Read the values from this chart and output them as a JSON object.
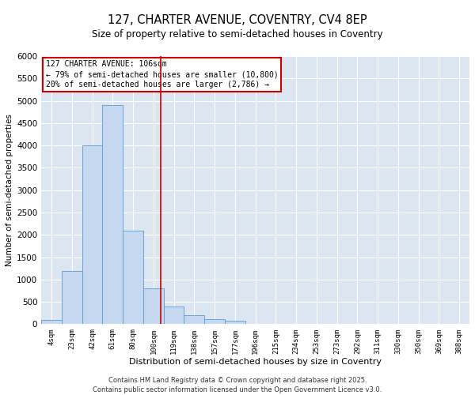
{
  "title1": "127, CHARTER AVENUE, COVENTRY, CV4 8EP",
  "title2": "Size of property relative to semi-detached houses in Coventry",
  "xlabel": "Distribution of semi-detached houses by size in Coventry",
  "ylabel": "Number of semi-detached properties",
  "categories": [
    "4sqm",
    "23sqm",
    "42sqm",
    "61sqm",
    "80sqm",
    "100sqm",
    "119sqm",
    "138sqm",
    "157sqm",
    "177sqm",
    "196sqm",
    "215sqm",
    "234sqm",
    "253sqm",
    "273sqm",
    "292sqm",
    "311sqm",
    "330sqm",
    "350sqm",
    "369sqm",
    "388sqm"
  ],
  "bar_values": [
    100,
    1200,
    4000,
    4900,
    2100,
    800,
    400,
    200,
    120,
    80,
    0,
    0,
    0,
    0,
    0,
    0,
    0,
    0,
    0,
    0,
    0
  ],
  "bar_color": "#c5d8ef",
  "bar_edge_color": "#5b9bd5",
  "vline_x": 5.35,
  "vline_color": "#cc0000",
  "annotation_text": "127 CHARTER AVENUE: 106sqm\n← 79% of semi-detached houses are smaller (10,800)\n20% of semi-detached houses are larger (2,786) →",
  "annotation_box_color": "#cc0000",
  "ylim": [
    0,
    6000
  ],
  "yticks": [
    0,
    500,
    1000,
    1500,
    2000,
    2500,
    3000,
    3500,
    4000,
    4500,
    5000,
    5500,
    6000
  ],
  "bg_color": "#dce6f1",
  "footer1": "Contains HM Land Registry data © Crown copyright and database right 2025.",
  "footer2": "Contains public sector information licensed under the Open Government Licence v3.0."
}
